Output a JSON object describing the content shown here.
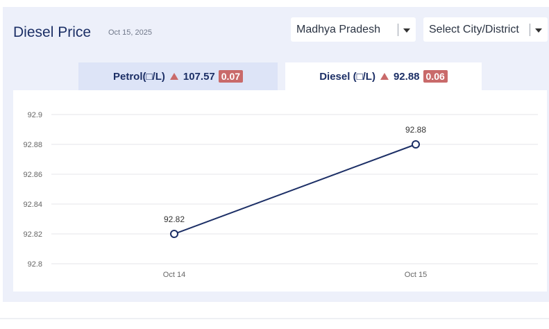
{
  "header": {
    "title": "Diesel Price",
    "date": "Oct 15, 2025"
  },
  "filters": {
    "state": "Madhya Pradesh",
    "city": "Select City/District"
  },
  "tabs": [
    {
      "label": "Petrol(□/L)",
      "price": "107.57",
      "change": "0.07",
      "trend": "up"
    },
    {
      "label": "Diesel (□/L)",
      "price": "92.88",
      "change": "0.06",
      "trend": "up"
    }
  ],
  "colors": {
    "line": "#1c2f66",
    "change_badge": "#c96a6a",
    "active_tab": "#ffffff",
    "inactive_tab": "#dde4f7"
  },
  "chart_data": {
    "type": "line",
    "categories": [
      "Oct 14",
      "Oct 15"
    ],
    "values": [
      92.82,
      92.88
    ],
    "data_labels": [
      "92.82",
      "92.88"
    ],
    "ylim": [
      92.8,
      92.9
    ],
    "yticks": [
      "92.9",
      "92.88",
      "92.86",
      "92.84",
      "92.82",
      "92.8"
    ],
    "grid": true
  }
}
